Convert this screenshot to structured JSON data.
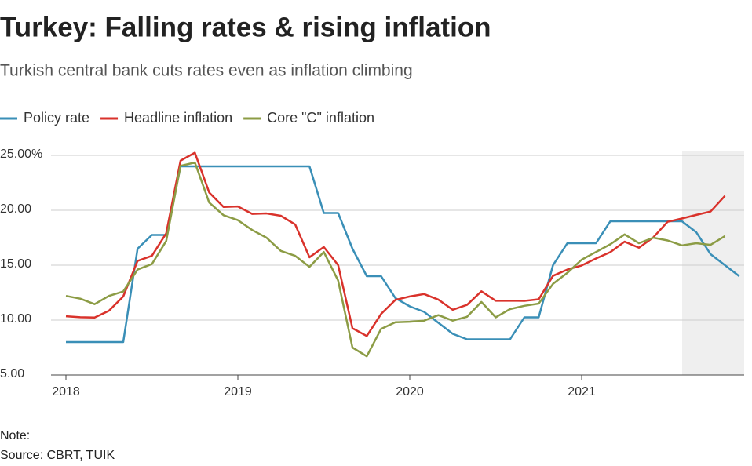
{
  "chart_data": {
    "type": "line",
    "title": "Turkey: Falling rates & rising inflation",
    "subtitle": "Turkish central bank cuts rates even as inflation climbing",
    "note": "Note:",
    "source": "Source: CBRT, TUIK",
    "categories": [
      "2018",
      null,
      null,
      null,
      null,
      null,
      null,
      null,
      null,
      null,
      null,
      null,
      "2019",
      null,
      null,
      null,
      null,
      null,
      null,
      null,
      null,
      null,
      null,
      null,
      "2020",
      null,
      null,
      null,
      null,
      null,
      null,
      null,
      null,
      null,
      null,
      null,
      "2021",
      null,
      null,
      null,
      null,
      null,
      null,
      null,
      null,
      null,
      null,
      null
    ],
    "series": [
      {
        "name": "Policy rate",
        "color": "#3a8fb7",
        "values": [
          8,
          8,
          8,
          8,
          8,
          16.5,
          17.75,
          17.75,
          24,
          24,
          24,
          24,
          24,
          24,
          24,
          24,
          24,
          24,
          19.75,
          19.75,
          16.5,
          14,
          14,
          12,
          11.25,
          10.75,
          9.75,
          8.75,
          8.25,
          8.25,
          8.25,
          8.25,
          10.25,
          10.25,
          15,
          17,
          17,
          17,
          19,
          19,
          19,
          19,
          19,
          19,
          18,
          16,
          15,
          14
        ]
      },
      {
        "name": "Headline inflation",
        "color": "#d9322b",
        "values": [
          10.35,
          10.26,
          10.23,
          10.85,
          12.15,
          15.39,
          15.85,
          17.9,
          24.52,
          25.24,
          21.62,
          20.3,
          20.35,
          19.67,
          19.71,
          19.5,
          18.71,
          15.72,
          16.65,
          15.01,
          9.26,
          8.55,
          10.56,
          11.84,
          12.15,
          12.37,
          11.86,
          10.94,
          11.39,
          12.62,
          11.76,
          11.77,
          11.75,
          11.89,
          14.03,
          14.6,
          14.97,
          15.61,
          16.19,
          17.14,
          16.59,
          17.53,
          18.95,
          19.25,
          19.58,
          19.89,
          21.31,
          null
        ]
      },
      {
        "name": "Core \"C\" inflation",
        "color": "#8c9c45",
        "values": [
          12.2,
          11.95,
          11.45,
          12.2,
          12.6,
          14.6,
          15.1,
          17.2,
          24.05,
          24.35,
          20.7,
          19.55,
          19.1,
          18.2,
          17.5,
          16.3,
          15.85,
          14.85,
          16.2,
          13.6,
          7.5,
          6.7,
          9.2,
          9.8,
          9.85,
          9.95,
          10.45,
          9.95,
          10.3,
          11.65,
          10.25,
          11.0,
          11.3,
          11.5,
          13.3,
          14.3,
          15.5,
          16.2,
          16.9,
          17.8,
          17.0,
          17.5,
          17.25,
          16.8,
          17.0,
          16.85,
          17.65,
          null
        ]
      }
    ],
    "ylim": [
      5,
      25
    ],
    "yticks": [
      {
        "value": 5,
        "label": "5.00"
      },
      {
        "value": 10,
        "label": "10.00"
      },
      {
        "value": 15,
        "label": "15.00"
      },
      {
        "value": 20,
        "label": "20.00"
      },
      {
        "value": 25,
        "label": "25.00%"
      }
    ],
    "grid": true,
    "legend": "top-left"
  }
}
